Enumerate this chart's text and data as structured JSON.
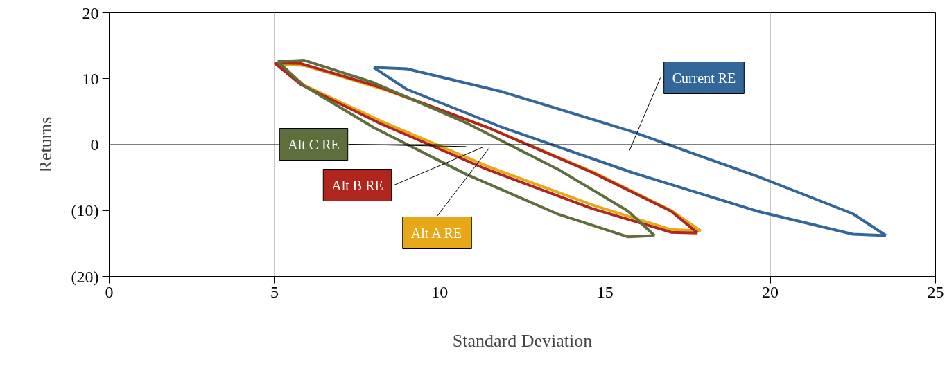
{
  "chart_data": {
    "type": "line",
    "xlabel": "Standard Deviation",
    "ylabel": "Returns",
    "xlim": [
      0,
      25
    ],
    "ylim": [
      -20,
      20
    ],
    "xticks": [
      0,
      5,
      10,
      15,
      20,
      25
    ],
    "yticks": [
      {
        "value": -20,
        "label": "(20)"
      },
      {
        "value": -10,
        "label": "(10)"
      },
      0,
      10,
      20
    ],
    "grid": "x",
    "marker": "none",
    "line_style": "solid",
    "ref_lines": [
      {
        "axis": "y",
        "value": 0,
        "color": "#000000"
      }
    ],
    "series": [
      {
        "color": "#336699",
        "x": [
          8.0,
          9.0,
          11.9,
          15.8,
          19.6,
          22.5,
          23.5
        ],
        "values": [
          11.7,
          11.5,
          8,
          2,
          -4.8,
          -10.5,
          -13.8
        ]
      },
      {
        "color": "#336699",
        "x": [
          8.0,
          9.0,
          11.9,
          15.8,
          19.6,
          22.5,
          23.5
        ],
        "values": [
          11.7,
          8.4,
          2.6,
          -4.2,
          -10.1,
          -13.6,
          -13.8
        ]
      },
      {
        "color": "#e6a817",
        "x": [
          5.1,
          5.9,
          8.3,
          11.5,
          14.7,
          17.0,
          17.9
        ],
        "values": [
          12.2,
          12,
          8.4,
          2.5,
          -4.3,
          -10,
          -13.1
        ]
      },
      {
        "color": "#e6a817",
        "x": [
          5.1,
          5.9,
          8.3,
          11.5,
          14.7,
          17.0,
          17.9
        ],
        "values": [
          12.2,
          9,
          3.4,
          -3.4,
          -9.3,
          -12.9,
          -13.1
        ]
      },
      {
        "color": "#b0251c",
        "x": [
          5.0,
          5.8,
          8.2,
          11.4,
          14.6,
          17.0,
          17.8
        ],
        "values": [
          12.4,
          12.3,
          8.7,
          2.7,
          -4.2,
          -10.1,
          -13.4
        ]
      },
      {
        "color": "#b0251c",
        "x": [
          5.0,
          5.8,
          8.2,
          11.4,
          14.6,
          17.0,
          17.8
        ],
        "values": [
          12.4,
          9.1,
          3.2,
          -3.7,
          -9.7,
          -13.3,
          -13.4
        ]
      },
      {
        "color": "#5f6e3d",
        "x": [
          5.1,
          5.9,
          8.0,
          10.8,
          13.6,
          15.7,
          16.5
        ],
        "values": [
          12.6,
          12.8,
          9.4,
          3.3,
          -3.8,
          -10.1,
          -13.8
        ]
      },
      {
        "color": "#5f6e3d",
        "x": [
          5.1,
          5.9,
          8.0,
          10.8,
          13.6,
          15.7,
          16.5
        ],
        "values": [
          12.6,
          8.9,
          2.6,
          -4.5,
          -10.6,
          -14,
          -13.8
        ]
      }
    ],
    "annotations": [
      "Current RE",
      {
        "text": "Alt A RE",
        "x": 11.5,
        "y": -0.5
      },
      {
        "text": "Alt B RE",
        "x": 11.3,
        "y": -0.4
      },
      {
        "text": "Alt C RE",
        "x": 10.8,
        "y": -0.3
      }
    ]
  }
}
